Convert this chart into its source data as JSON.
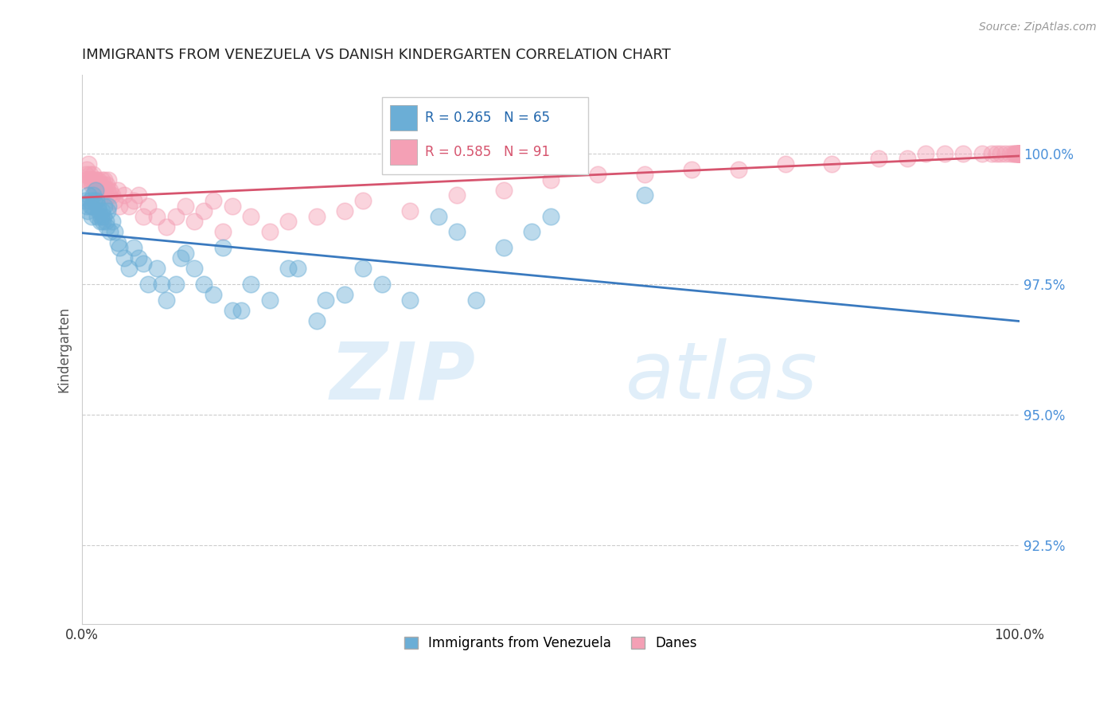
{
  "title": "IMMIGRANTS FROM VENEZUELA VS DANISH KINDERGARTEN CORRELATION CHART",
  "source_text": "Source: ZipAtlas.com",
  "ylabel": "Kindergarten",
  "xmin": 0.0,
  "xmax": 100.0,
  "ymin": 91.0,
  "ymax": 101.5,
  "yticks": [
    92.5,
    95.0,
    97.5,
    100.0
  ],
  "ytick_labels": [
    "92.5%",
    "95.0%",
    "97.5%",
    "100.0%"
  ],
  "xtick_labels": [
    "0.0%",
    "100.0%"
  ],
  "legend_r_blue": "R = 0.265",
  "legend_n_blue": "N = 65",
  "legend_r_pink": "R = 0.585",
  "legend_n_pink": "N = 91",
  "legend_label_blue": "Immigrants from Venezuela",
  "legend_label_pink": "Danes",
  "blue_color": "#6baed6",
  "pink_color": "#f4a0b5",
  "blue_line_color": "#3a7abf",
  "pink_line_color": "#d6546e",
  "watermark_zip": "ZIP",
  "watermark_atlas": "atlas",
  "blue_x": [
    0.3,
    0.5,
    0.6,
    0.7,
    0.8,
    0.9,
    1.0,
    1.1,
    1.2,
    1.3,
    1.4,
    1.5,
    1.6,
    1.7,
    1.8,
    1.9,
    2.0,
    2.1,
    2.2,
    2.3,
    2.4,
    2.5,
    2.6,
    2.7,
    2.8,
    3.0,
    3.2,
    3.5,
    3.8,
    4.0,
    4.5,
    5.0,
    5.5,
    6.0,
    6.5,
    7.0,
    8.0,
    8.5,
    9.0,
    10.0,
    10.5,
    11.0,
    12.0,
    13.0,
    14.0,
    15.0,
    16.0,
    17.0,
    18.0,
    20.0,
    22.0,
    23.0,
    25.0,
    26.0,
    28.0,
    30.0,
    32.0,
    35.0,
    38.0,
    40.0,
    42.0,
    45.0,
    48.0,
    50.0,
    60.0
  ],
  "blue_y": [
    99.1,
    99.0,
    98.9,
    99.2,
    99.1,
    99.0,
    98.8,
    99.0,
    99.2,
    99.1,
    99.3,
    99.1,
    98.8,
    99.0,
    98.9,
    98.7,
    98.8,
    98.9,
    98.7,
    98.8,
    99.0,
    98.7,
    98.6,
    98.9,
    99.0,
    98.5,
    98.7,
    98.5,
    98.3,
    98.2,
    98.0,
    97.8,
    98.2,
    98.0,
    97.9,
    97.5,
    97.8,
    97.5,
    97.2,
    97.5,
    98.0,
    98.1,
    97.8,
    97.5,
    97.3,
    98.2,
    97.0,
    97.0,
    97.5,
    97.2,
    97.8,
    97.8,
    96.8,
    97.2,
    97.3,
    97.8,
    97.5,
    97.2,
    98.8,
    98.5,
    97.2,
    98.2,
    98.5,
    98.8,
    99.2
  ],
  "pink_x": [
    0.3,
    0.4,
    0.5,
    0.6,
    0.7,
    0.8,
    0.9,
    1.0,
    1.1,
    1.2,
    1.3,
    1.4,
    1.5,
    1.6,
    1.7,
    1.8,
    1.9,
    2.0,
    2.1,
    2.2,
    2.3,
    2.4,
    2.5,
    2.6,
    2.7,
    2.8,
    2.9,
    3.0,
    3.2,
    3.5,
    3.8,
    4.0,
    4.5,
    5.0,
    5.5,
    6.0,
    6.5,
    7.0,
    8.0,
    9.0,
    10.0,
    11.0,
    12.0,
    13.0,
    14.0,
    15.0,
    16.0,
    18.0,
    20.0,
    22.0,
    25.0,
    28.0,
    30.0,
    35.0,
    40.0,
    45.0,
    50.0,
    55.0,
    60.0,
    65.0,
    70.0,
    75.0,
    80.0,
    85.0,
    88.0,
    90.0,
    92.0,
    94.0,
    96.0,
    97.0,
    97.5,
    98.0,
    98.5,
    99.0,
    99.3,
    99.5,
    99.6,
    99.7,
    99.8,
    99.9,
    99.9,
    100.0,
    100.0,
    100.0,
    100.0,
    100.0,
    100.0,
    100.0,
    100.0,
    100.0,
    100.0
  ],
  "pink_y": [
    99.5,
    99.6,
    99.7,
    99.5,
    99.8,
    99.6,
    99.5,
    99.4,
    99.5,
    99.6,
    99.5,
    99.4,
    99.5,
    99.3,
    99.5,
    99.4,
    99.2,
    99.4,
    99.5,
    99.3,
    99.4,
    99.5,
    99.2,
    99.4,
    99.3,
    99.5,
    99.2,
    99.3,
    99.2,
    99.1,
    99.3,
    99.0,
    99.2,
    99.0,
    99.1,
    99.2,
    98.8,
    99.0,
    98.8,
    98.6,
    98.8,
    99.0,
    98.7,
    98.9,
    99.1,
    98.5,
    99.0,
    98.8,
    98.5,
    98.7,
    98.8,
    98.9,
    99.1,
    98.9,
    99.2,
    99.3,
    99.5,
    99.6,
    99.6,
    99.7,
    99.7,
    99.8,
    99.8,
    99.9,
    99.9,
    100.0,
    100.0,
    100.0,
    100.0,
    100.0,
    100.0,
    100.0,
    100.0,
    100.0,
    100.0,
    100.0,
    100.0,
    100.0,
    100.0,
    100.0,
    100.0,
    100.0,
    100.0,
    100.0,
    100.0,
    100.0,
    100.0,
    100.0,
    100.0,
    100.0,
    100.0
  ]
}
